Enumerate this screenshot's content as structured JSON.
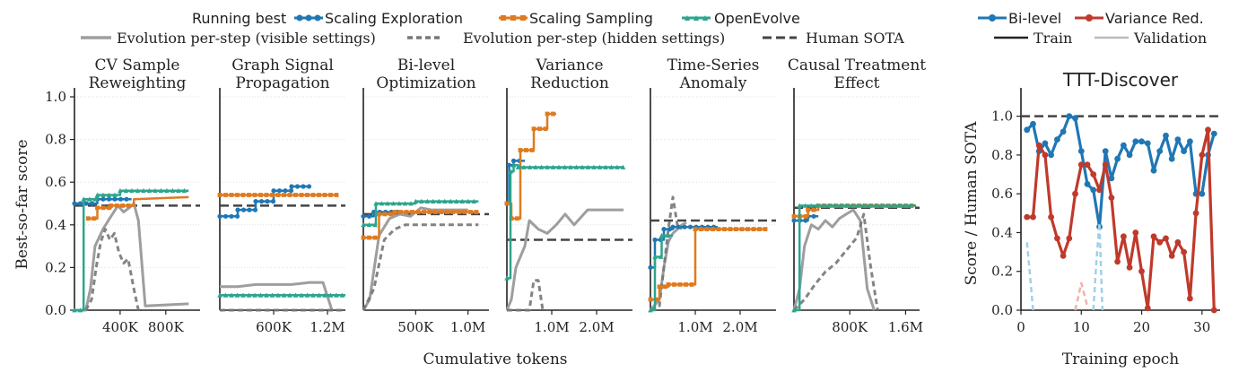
{
  "colors": {
    "exploration": "#1f77b4",
    "sampling": "#e07a1f",
    "openevolve": "#2ca58d",
    "visible": "#9e9e9e",
    "hidden": "#777777",
    "sota": "#444444",
    "bilevel": "#1f77b4",
    "variance": "#c0392b",
    "train": "#222222",
    "validation": "#bbbbbb"
  },
  "legend": {
    "header": "Running best",
    "exploration": "Scaling Exploration",
    "sampling": "Scaling Sampling",
    "openevolve": "OpenEvolve",
    "visible": "Evolution per-step (visible settings)",
    "hidden": "Evolution per-step (hidden settings)",
    "sota": "Human SOTA"
  },
  "legend_right": {
    "bilevel": "Bi-level",
    "variance": "Variance Red.",
    "train": "Train",
    "validation": "Validation"
  },
  "shared": {
    "ylabel": "Best-so-far score",
    "xlabel": "Cumulative tokens",
    "yticks": [
      "0.0",
      "0.2",
      "0.4",
      "0.6",
      "0.8",
      "1.0"
    ]
  },
  "chart_data": [
    {
      "type": "line",
      "title": [
        "CV Sample",
        "Reweighting"
      ],
      "xlim": [
        0,
        1100000
      ],
      "ylim": [
        0,
        1.0
      ],
      "xticks": [
        {
          "v": 400000,
          "label": "400K"
        },
        {
          "v": 800000,
          "label": "800K"
        }
      ],
      "sota": 0.49,
      "series": [
        {
          "key": "exploration",
          "x": [
            0,
            200000,
            200000,
            500000
          ],
          "y": [
            0.5,
            0.5,
            0.52,
            0.52
          ]
        },
        {
          "key": "sampling",
          "x": [
            120000,
            200000,
            200000,
            320000,
            320000,
            520000,
            520000,
            1000000
          ],
          "y": [
            0.43,
            0.43,
            0.48,
            0.48,
            0.49,
            0.49,
            0.52,
            0.53
          ]
        },
        {
          "key": "openevolve",
          "x": [
            0,
            80000,
            80000,
            200000,
            200000,
            400000,
            400000,
            1000000
          ],
          "y": [
            0,
            0,
            0.52,
            0.52,
            0.54,
            0.54,
            0.56,
            0.56
          ]
        },
        {
          "key": "visible",
          "x": [
            0,
            100000,
            140000,
            180000,
            250000,
            320000,
            380000,
            430000,
            480000,
            520000,
            560000,
            620000,
            1000000
          ],
          "y": [
            0,
            0,
            0.1,
            0.3,
            0.38,
            0.44,
            0.49,
            0.46,
            0.48,
            0.5,
            0.42,
            0.02,
            0.03
          ]
        },
        {
          "key": "hidden",
          "x": [
            100000,
            150000,
            190000,
            230000,
            270000,
            310000,
            350000,
            390000,
            430000,
            470000,
            520000,
            560000
          ],
          "y": [
            0,
            0.05,
            0.2,
            0.32,
            0.38,
            0.33,
            0.36,
            0.27,
            0.22,
            0.24,
            0.1,
            0.0
          ]
        }
      ]
    },
    {
      "type": "line",
      "title": [
        "Graph Signal",
        "Propagation"
      ],
      "xlim": [
        0,
        1400000
      ],
      "ylim": [
        0,
        1.0
      ],
      "xticks": [
        {
          "v": 600000,
          "label": "600K"
        },
        {
          "v": 1200000,
          "label": "1.2M"
        }
      ],
      "sota": 0.49,
      "series": [
        {
          "key": "exploration",
          "x": [
            0,
            200000,
            200000,
            400000,
            400000,
            600000,
            600000,
            800000,
            800000,
            1000000
          ],
          "y": [
            0.44,
            0.44,
            0.47,
            0.47,
            0.51,
            0.51,
            0.56,
            0.56,
            0.58,
            0.58
          ]
        },
        {
          "key": "sampling",
          "x": [
            0,
            1300000
          ],
          "y": [
            0.54,
            0.54
          ]
        },
        {
          "key": "openevolve",
          "x": [
            0,
            1400000
          ],
          "y": [
            0.07,
            0.07
          ]
        },
        {
          "key": "visible",
          "x": [
            0,
            200000,
            400000,
            600000,
            800000,
            1000000,
            1150000,
            1250000
          ],
          "y": [
            0.11,
            0.11,
            0.12,
            0.12,
            0.12,
            0.13,
            0.13,
            0.0
          ]
        },
        {
          "key": "hidden",
          "x": [
            0,
            1400000
          ],
          "y": [
            0.0,
            0.0
          ]
        }
      ]
    },
    {
      "type": "line",
      "title": [
        "Bi-level",
        "Optimization"
      ],
      "xlim": [
        0,
        1200000
      ],
      "ylim": [
        0,
        1.0
      ],
      "xticks": [
        {
          "v": 500000,
          "label": "500K"
        },
        {
          "v": 1000000,
          "label": "1.0M"
        }
      ],
      "sota": 0.45,
      "series": [
        {
          "key": "exploration",
          "x": [
            0,
            100000,
            100000,
            350000
          ],
          "y": [
            0.44,
            0.44,
            0.46,
            0.46
          ]
        },
        {
          "key": "sampling",
          "x": [
            0,
            150000,
            150000,
            300000,
            300000,
            1100000
          ],
          "y": [
            0.34,
            0.34,
            0.45,
            0.45,
            0.46,
            0.46
          ]
        },
        {
          "key": "openevolve",
          "x": [
            0,
            120000,
            120000,
            500000,
            500000,
            1100000
          ],
          "y": [
            0.4,
            0.4,
            0.5,
            0.5,
            0.51,
            0.51
          ]
        },
        {
          "key": "visible",
          "x": [
            0,
            60000,
            150000,
            250000,
            350000,
            450000,
            550000,
            650000,
            1000000
          ],
          "y": [
            0,
            0.05,
            0.35,
            0.43,
            0.45,
            0.44,
            0.48,
            0.47,
            0.47
          ]
        },
        {
          "key": "hidden",
          "x": [
            0,
            100000,
            200000,
            300000,
            400000,
            1100000
          ],
          "y": [
            0,
            0.1,
            0.33,
            0.38,
            0.4,
            0.4
          ]
        }
      ]
    },
    {
      "type": "line",
      "title": [
        "Variance",
        "Reduction"
      ],
      "xlim": [
        0,
        2800000
      ],
      "ylim": [
        0,
        1.0
      ],
      "xticks": [
        {
          "v": 1000000,
          "label": "1.0M"
        },
        {
          "v": 2000000,
          "label": "2.0M"
        }
      ],
      "sota": 0.33,
      "series": [
        {
          "key": "exploration",
          "x": [
            0,
            50000,
            50000,
            150000,
            150000,
            400000
          ],
          "y": [
            0.5,
            0.5,
            0.68,
            0.68,
            0.7,
            0.7
          ]
        },
        {
          "key": "sampling",
          "x": [
            0,
            100000,
            100000,
            300000,
            300000,
            600000,
            600000,
            900000,
            900000,
            1100000
          ],
          "y": [
            0.5,
            0.5,
            0.43,
            0.43,
            0.75,
            0.75,
            0.85,
            0.85,
            0.92,
            0.92
          ]
        },
        {
          "key": "openevolve",
          "x": [
            0,
            80000,
            80000,
            150000,
            150000,
            250000,
            250000,
            2600000
          ],
          "y": [
            0.15,
            0.15,
            0.65,
            0.65,
            0.68,
            0.68,
            0.67,
            0.67
          ]
        },
        {
          "key": "visible",
          "x": [
            0,
            100000,
            200000,
            300000,
            400000,
            500000,
            700000,
            900000,
            1100000,
            1300000,
            1500000,
            1800000,
            2600000
          ],
          "y": [
            0,
            0.05,
            0.2,
            0.25,
            0.3,
            0.42,
            0.38,
            0.36,
            0.4,
            0.45,
            0.4,
            0.47,
            0.47
          ]
        },
        {
          "key": "hidden",
          "x": [
            0,
            500000,
            600000,
            700000,
            800000
          ],
          "y": [
            0,
            0,
            0.14,
            0.14,
            0.0
          ]
        }
      ]
    },
    {
      "type": "line",
      "title": [
        "Time-Series",
        "Anomaly"
      ],
      "xlim": [
        0,
        2800000
      ],
      "ylim": [
        0,
        1.0
      ],
      "xticks": [
        {
          "v": 1000000,
          "label": "1.0M"
        },
        {
          "v": 2000000,
          "label": "2.0M"
        }
      ],
      "sota": 0.42,
      "series": [
        {
          "key": "exploration",
          "x": [
            0,
            100000,
            100000,
            300000,
            300000,
            500000,
            500000,
            1500000
          ],
          "y": [
            0.2,
            0.2,
            0.33,
            0.33,
            0.38,
            0.38,
            0.39,
            0.39
          ]
        },
        {
          "key": "sampling",
          "x": [
            0,
            200000,
            200000,
            400000,
            400000,
            1000000,
            1000000,
            2600000
          ],
          "y": [
            0.05,
            0.05,
            0.11,
            0.11,
            0.12,
            0.12,
            0.38,
            0.38
          ]
        },
        {
          "key": "openevolve",
          "x": [
            0,
            100000,
            100000,
            250000,
            250000,
            500000
          ],
          "y": [
            0,
            0,
            0.25,
            0.25,
            0.35,
            0.35
          ]
        },
        {
          "key": "visible",
          "x": [
            0,
            200000,
            300000,
            400000,
            500000,
            600000,
            700000,
            800000
          ],
          "y": [
            0,
            0.05,
            0.2,
            0.32,
            0.36,
            0.38,
            0.4,
            0.41
          ]
        },
        {
          "key": "hidden",
          "x": [
            0,
            200000,
            300000,
            400000,
            500000,
            600000,
            700000
          ],
          "y": [
            0,
            0.02,
            0.2,
            0.38,
            0.53,
            0.4,
            0.38
          ]
        }
      ]
    },
    {
      "type": "line",
      "title": [
        "Causal Treatment",
        "Effect"
      ],
      "xlim": [
        0,
        1800000
      ],
      "ylim": [
        0,
        1.0
      ],
      "xticks": [
        {
          "v": 800000,
          "label": "800K"
        },
        {
          "v": 1600000,
          "label": "1.6M"
        }
      ],
      "sota": 0.48,
      "series": [
        {
          "key": "exploration",
          "x": [
            0,
            200000,
            200000,
            350000
          ],
          "y": [
            0.42,
            0.42,
            0.44,
            0.44
          ]
        },
        {
          "key": "sampling",
          "x": [
            0,
            200000,
            200000,
            350000,
            350000,
            1750000
          ],
          "y": [
            0.44,
            0.44,
            0.47,
            0.47,
            0.49,
            0.49
          ]
        },
        {
          "key": "openevolve",
          "x": [
            0,
            80000,
            80000,
            1750000
          ],
          "y": [
            0,
            0,
            0.49,
            0.49
          ]
        },
        {
          "key": "visible",
          "x": [
            0,
            80000,
            150000,
            250000,
            350000,
            450000,
            550000,
            650000,
            750000,
            850000,
            950000,
            1050000,
            1150000
          ],
          "y": [
            0,
            0.1,
            0.3,
            0.4,
            0.38,
            0.42,
            0.39,
            0.43,
            0.45,
            0.47,
            0.42,
            0.1,
            0.0
          ]
        },
        {
          "key": "hidden",
          "x": [
            0,
            150000,
            300000,
            450000,
            600000,
            700000,
            800000,
            900000,
            1000000,
            1100000,
            1200000
          ],
          "y": [
            0,
            0.05,
            0.12,
            0.18,
            0.22,
            0.26,
            0.3,
            0.34,
            0.45,
            0.2,
            0.0
          ]
        }
      ]
    },
    {
      "type": "line",
      "title": [
        "TTT-Discover"
      ],
      "xlabel": "Training epoch",
      "ylabel": "Score / Human SOTA",
      "xlim": [
        0,
        33
      ],
      "ylim": [
        0,
        1.1
      ],
      "xticks": [
        {
          "v": 0,
          "label": "0"
        },
        {
          "v": 10,
          "label": "10"
        },
        {
          "v": 20,
          "label": "20"
        },
        {
          "v": 30,
          "label": "30"
        }
      ],
      "yticks": [
        "0.0",
        "0.2",
        "0.4",
        "0.6",
        "0.8",
        "1.0"
      ],
      "reference": 1.0,
      "series": [
        {
          "key": "bilevel",
          "x": [
            1,
            2,
            3,
            4,
            5,
            6,
            7,
            8,
            9,
            10,
            11,
            12,
            13,
            14,
            15,
            16,
            17,
            18,
            19,
            20,
            21,
            22,
            23,
            24,
            25,
            26,
            27,
            28,
            29,
            30,
            31,
            32
          ],
          "y": [
            0.93,
            0.96,
            0.82,
            0.86,
            0.8,
            0.88,
            0.92,
            1.0,
            0.99,
            0.82,
            0.65,
            0.62,
            0.43,
            0.82,
            0.68,
            0.78,
            0.85,
            0.8,
            0.87,
            0.87,
            0.86,
            0.72,
            0.82,
            0.9,
            0.78,
            0.88,
            0.82,
            0.87,
            0.6,
            0.6,
            0.8,
            0.91
          ]
        },
        {
          "key": "variance",
          "x": [
            1,
            2,
            3,
            4,
            5,
            6,
            7,
            8,
            9,
            10,
            11,
            12,
            13,
            14,
            15,
            16,
            17,
            18,
            19,
            20,
            21,
            22,
            23,
            24,
            25,
            26,
            27,
            28,
            29,
            30,
            31,
            32
          ],
          "y": [
            0.48,
            0.48,
            0.85,
            0.8,
            0.48,
            0.37,
            0.28,
            0.37,
            0.6,
            0.75,
            0.75,
            0.7,
            0.62,
            0.75,
            0.58,
            0.25,
            0.38,
            0.22,
            0.4,
            0.2,
            0.01,
            0.38,
            0.35,
            0.37,
            0.28,
            0.35,
            0.3,
            0.06,
            0.5,
            0.8,
            0.93,
            0.0
          ]
        },
        {
          "key": "bilevel_val",
          "x": [
            1,
            1.5,
            2
          ],
          "y": [
            0.35,
            0.18,
            0.0
          ]
        },
        {
          "key": "bilevel_val",
          "x": [
            12,
            12.5,
            13,
            13.5
          ],
          "y": [
            0.0,
            0.25,
            0.45,
            0.0
          ]
        },
        {
          "key": "variance_val",
          "x": [
            9,
            10,
            11
          ],
          "y": [
            0.0,
            0.14,
            0.02
          ]
        }
      ]
    }
  ]
}
